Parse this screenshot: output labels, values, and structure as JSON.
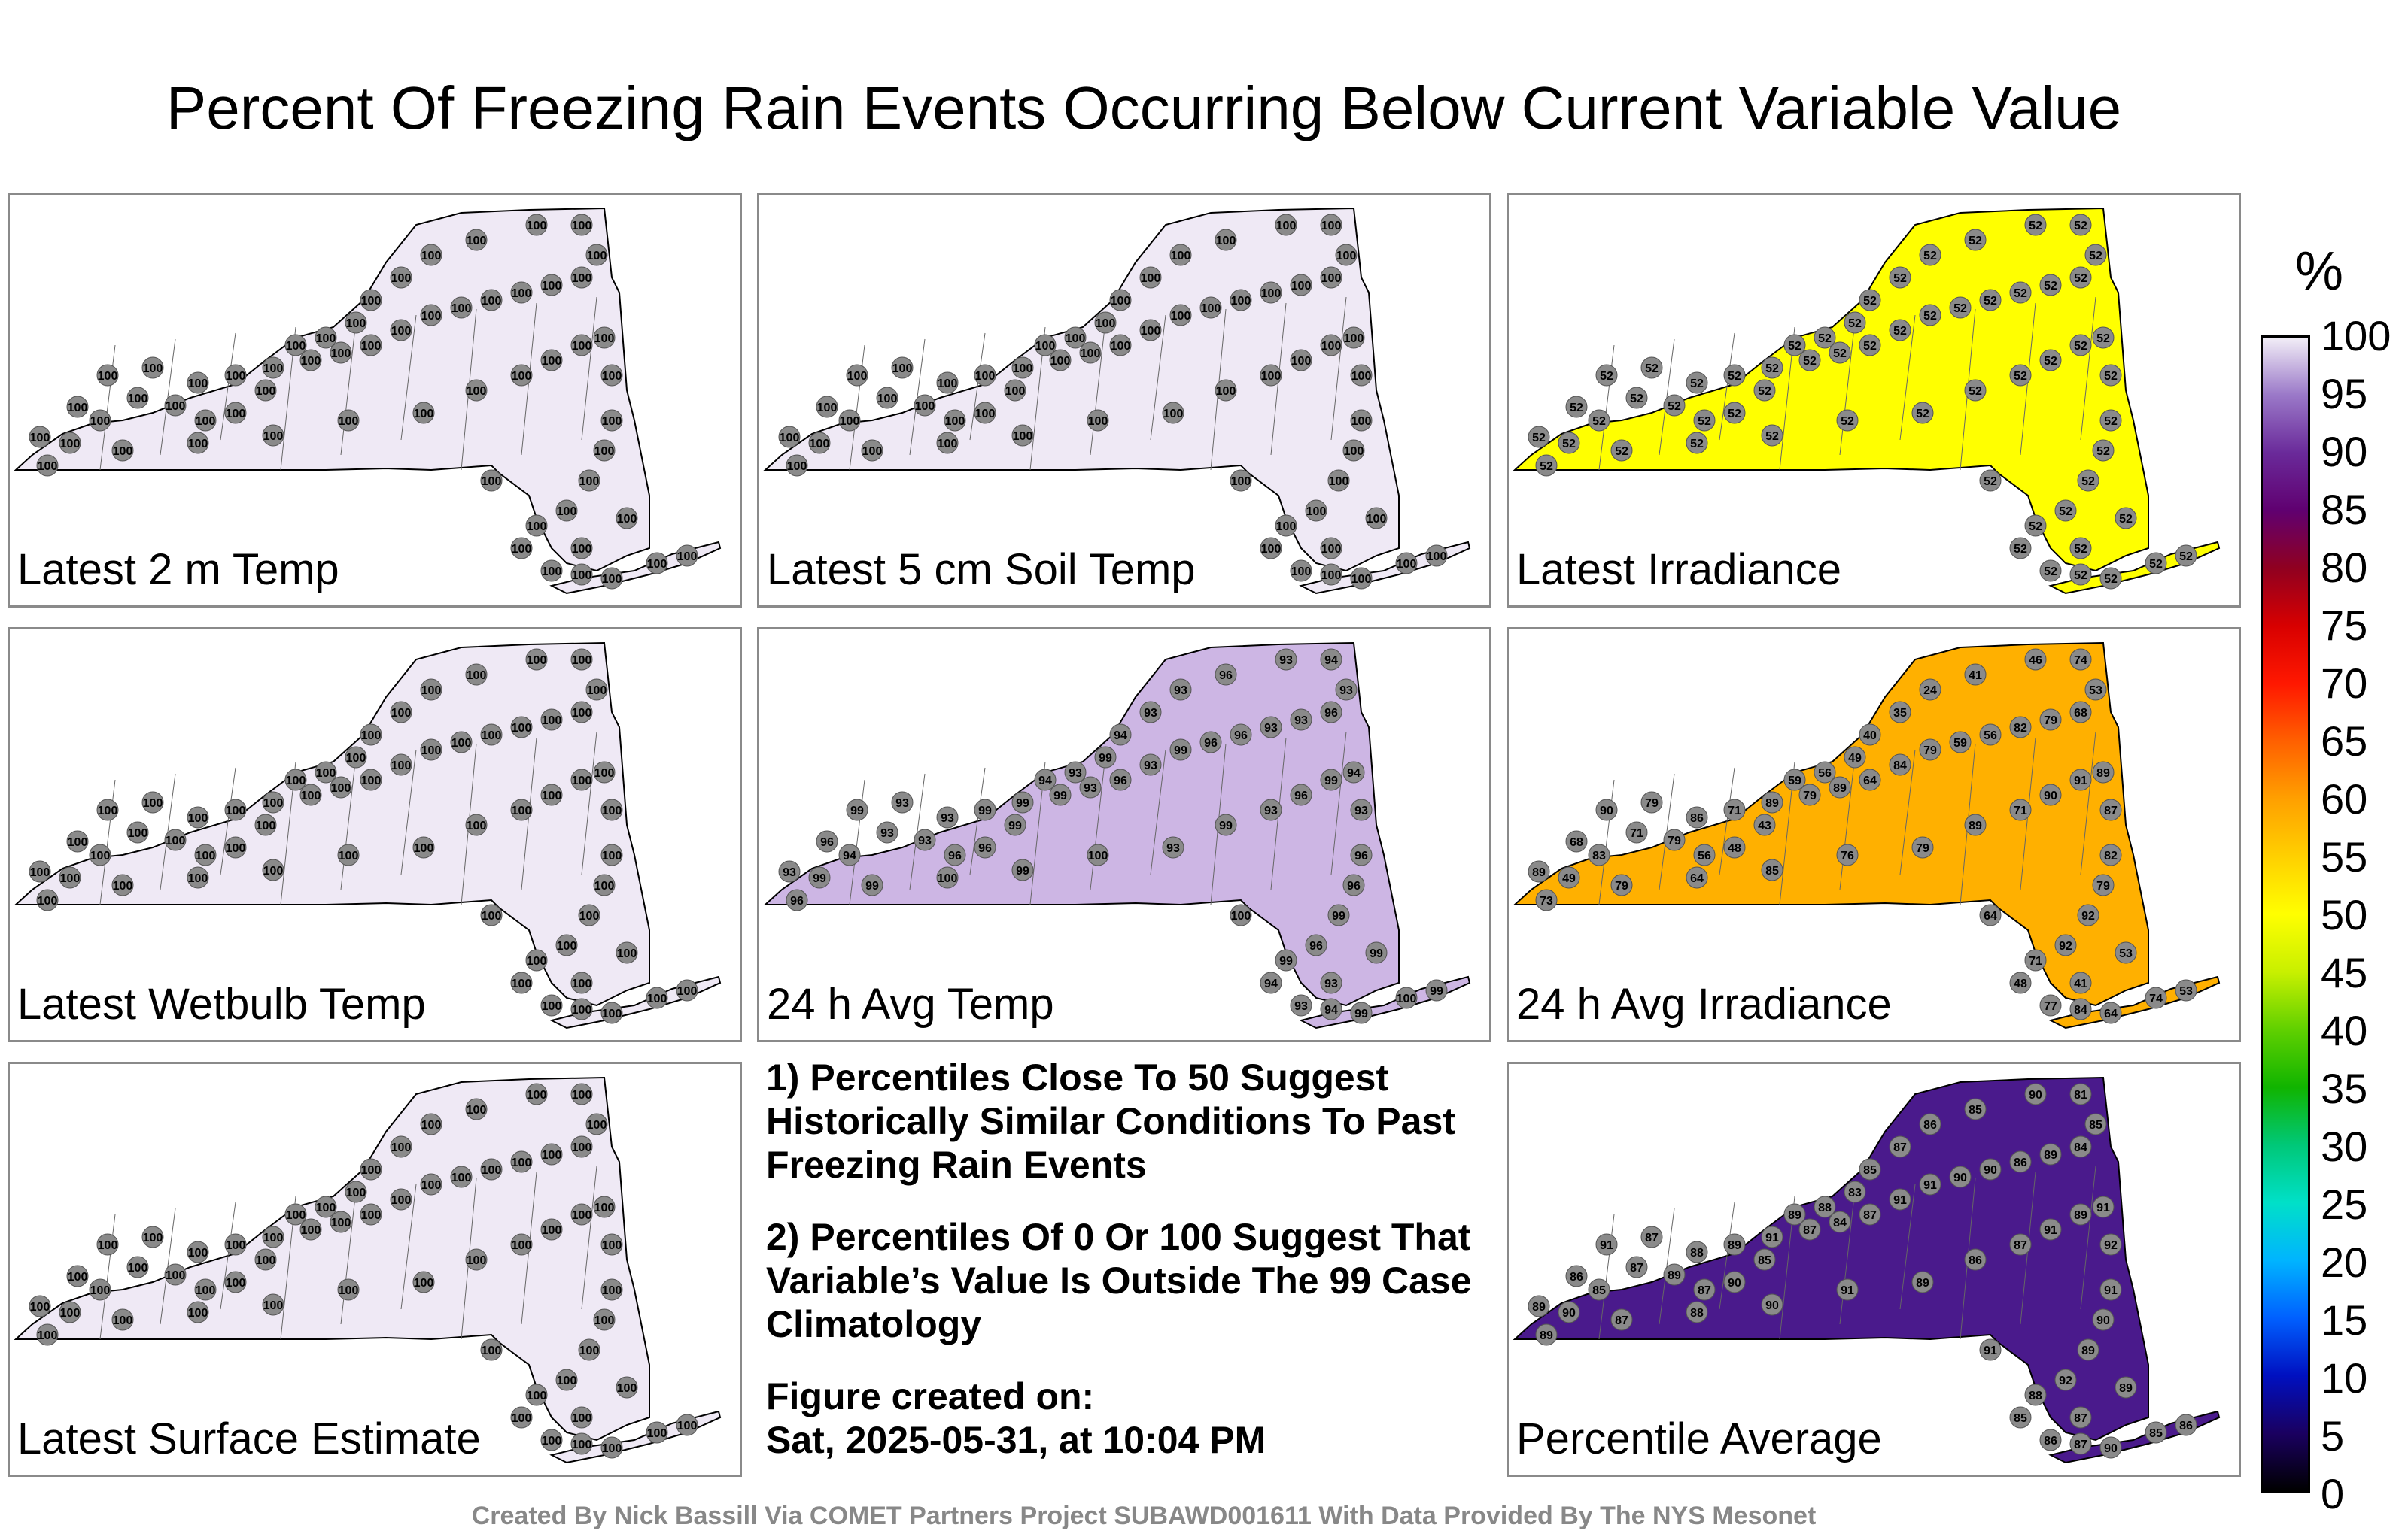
{
  "title": "Percent Of Freezing Rain Events Occurring Below Current Variable Value",
  "panels": [
    {
      "label": "Latest 2 m Temp",
      "station_values": [
        100,
        100,
        100,
        100,
        100,
        100,
        100,
        100,
        100,
        100,
        100,
        100,
        100,
        100,
        100,
        100,
        100,
        100,
        100,
        100,
        100,
        100,
        100,
        100,
        100,
        100,
        100,
        100,
        100,
        100,
        100,
        100,
        100,
        100,
        100,
        100,
        100,
        100,
        100,
        100,
        100,
        100,
        100,
        100,
        100,
        100,
        100,
        100,
        100,
        100,
        100,
        100,
        100,
        100,
        100,
        100,
        100,
        100,
        100,
        100
      ]
    },
    {
      "label": "Latest 5 cm Soil Temp",
      "station_values": [
        100,
        100,
        100,
        100,
        100,
        100,
        100,
        100,
        100,
        100,
        100,
        100,
        100,
        100,
        100,
        100,
        100,
        100,
        100,
        100,
        100,
        100,
        100,
        100,
        100,
        100,
        100,
        100,
        100,
        100,
        100,
        100,
        100,
        100,
        100,
        100,
        100,
        100,
        100,
        100,
        100,
        100,
        100,
        100,
        100,
        100,
        100,
        100,
        100,
        100,
        100,
        100,
        100,
        100,
        100,
        100,
        100,
        100,
        100,
        100
      ]
    },
    {
      "label": "Latest Irradiance",
      "station_values": [
        52,
        52,
        52,
        52,
        52,
        52,
        52,
        52,
        52,
        52,
        52,
        52,
        52,
        52,
        52,
        52,
        52,
        52,
        52,
        52,
        52,
        52,
        52,
        52,
        52,
        52,
        52,
        52,
        52,
        52,
        52,
        52,
        52,
        52,
        52,
        52,
        52,
        52,
        52,
        52,
        52,
        52,
        52,
        52,
        52,
        52,
        52,
        52,
        52,
        52,
        52,
        52,
        52,
        52,
        52,
        52,
        52,
        52,
        52,
        52
      ]
    },
    {
      "label": "Latest Wetbulb Temp",
      "station_values": [
        100,
        100,
        100,
        100,
        100,
        100,
        100,
        100,
        100,
        100,
        100,
        100,
        100,
        100,
        100,
        100,
        100,
        100,
        100,
        100,
        100,
        100,
        100,
        100,
        100,
        100,
        100,
        100,
        100,
        100,
        100,
        100,
        100,
        100,
        100,
        100,
        100,
        100,
        100,
        100,
        100,
        100,
        100,
        100,
        100,
        100,
        100,
        100,
        100,
        100,
        100,
        100,
        100,
        100,
        100,
        100,
        100,
        100,
        100,
        100
      ]
    },
    {
      "label": "24 h Avg Temp",
      "station_values": [
        93,
        96,
        99,
        93,
        93,
        99,
        99,
        99,
        93,
        96,
        93,
        99,
        96,
        96,
        93,
        93,
        96,
        93,
        94,
        93,
        96,
        93,
        93,
        94,
        99,
        93,
        94,
        99,
        96,
        96,
        93,
        93,
        94,
        99,
        96,
        99,
        100,
        99,
        100,
        93,
        99,
        93,
        96,
        99,
        94,
        93,
        96,
        96,
        99,
        96,
        99,
        94,
        93,
        99,
        93,
        94,
        99,
        100,
        99,
        100
      ]
    },
    {
      "label": "24 h Avg Irradiance",
      "station_values": [
        89,
        68,
        90,
        79,
        86,
        71,
        89,
        79,
        89,
        64,
        84,
        79,
        59,
        56,
        82,
        79,
        68,
        53,
        74,
        46,
        41,
        24,
        35,
        40,
        49,
        56,
        59,
        43,
        48,
        56,
        79,
        71,
        83,
        49,
        73,
        79,
        64,
        85,
        76,
        79,
        89,
        71,
        90,
        91,
        89,
        87,
        82,
        79,
        92,
        92,
        71,
        48,
        41,
        53,
        77,
        84,
        64,
        74,
        53,
        64
      ]
    },
    {
      "label": "Latest Surface Estimate",
      "station_values": [
        100,
        100,
        100,
        100,
        100,
        100,
        100,
        100,
        100,
        100,
        100,
        100,
        100,
        100,
        100,
        100,
        100,
        100,
        100,
        100,
        100,
        100,
        100,
        100,
        100,
        100,
        100,
        100,
        100,
        100,
        100,
        100,
        100,
        100,
        100,
        100,
        100,
        100,
        100,
        100,
        100,
        100,
        100,
        100,
        100,
        100,
        100,
        100,
        100,
        100,
        100,
        100,
        100,
        100,
        100,
        100,
        100,
        100,
        100,
        100
      ]
    },
    {
      "label": "Percentile Average",
      "station_values": [
        89,
        86,
        91,
        87,
        88,
        89,
        91,
        87,
        84,
        87,
        91,
        91,
        90,
        90,
        86,
        89,
        84,
        85,
        81,
        90,
        85,
        86,
        87,
        85,
        83,
        88,
        89,
        85,
        90,
        87,
        89,
        87,
        85,
        90,
        89,
        87,
        88,
        90,
        91,
        89,
        86,
        87,
        91,
        89,
        91,
        92,
        91,
        90,
        89,
        92,
        88,
        85,
        87,
        89,
        86,
        87,
        90,
        85,
        86,
        91
      ]
    }
  ],
  "notes": [
    "1) Percentiles Close To 50 Suggest Historically Similar Conditions To Past Freezing Rain Events",
    "2) Percentiles Of 0 Or 100 Suggest That Variable’s Value Is Outside The 99 Case Climatology"
  ],
  "created_label": "Figure created on:",
  "created_date": "Sat, 2025-05-31, at 10:04 PM",
  "credit": "Created By Nick Bassill Via COMET Partners Project SUBAWD001611 With Data Provided By The NYS Mesonet",
  "colorbar": {
    "unit": "%",
    "ticks": [
      "100",
      "95",
      "90",
      "85",
      "80",
      "75",
      "70",
      "65",
      "60",
      "55",
      "50",
      "45",
      "40",
      "35",
      "30",
      "25",
      "20",
      "15",
      "10",
      "5",
      "0"
    ],
    "colors": [
      "#000000",
      "#1a0060",
      "#0010c0",
      "#0060ff",
      "#00b4ff",
      "#00e0c8",
      "#00c878",
      "#10b400",
      "#60d000",
      "#c8f000",
      "#ffff00",
      "#ffd000",
      "#ffa000",
      "#ff6000",
      "#ff1800",
      "#d80000",
      "#900020",
      "#600070",
      "#6a2a9a",
      "#9a78c8",
      "#f2eef7"
    ]
  }
}
